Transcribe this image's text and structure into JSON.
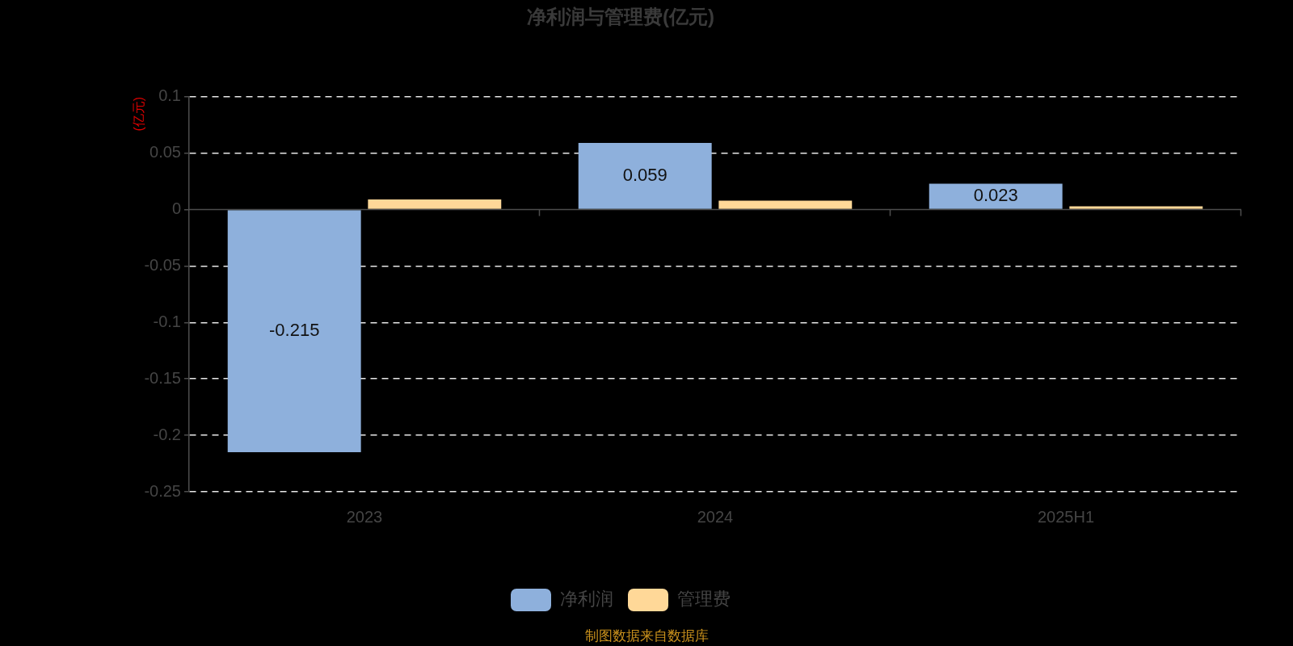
{
  "chart_data": {
    "type": "bar",
    "title": "净利润与管理费(亿元)",
    "ylabel": "(亿元)",
    "categories": [
      "2023",
      "2024",
      "2025H1"
    ],
    "series": [
      {
        "name": "净利润",
        "color": "#8eb0dc",
        "values": [
          -0.215,
          0.059,
          0.023
        ],
        "value_labels": [
          "-0.215",
          "0.059",
          "0.023"
        ]
      },
      {
        "name": "管理费",
        "color": "#ffd898",
        "values": [
          0.009,
          0.008,
          0.003
        ]
      }
    ],
    "ylim": [
      -0.25,
      0.1
    ],
    "yticks": [
      -0.25,
      -0.2,
      -0.15,
      -0.1,
      -0.05,
      0,
      0.05,
      0.1
    ],
    "grid": "y",
    "legend": "bottom",
    "annotations": [
      "制图数据来自数据库"
    ]
  }
}
